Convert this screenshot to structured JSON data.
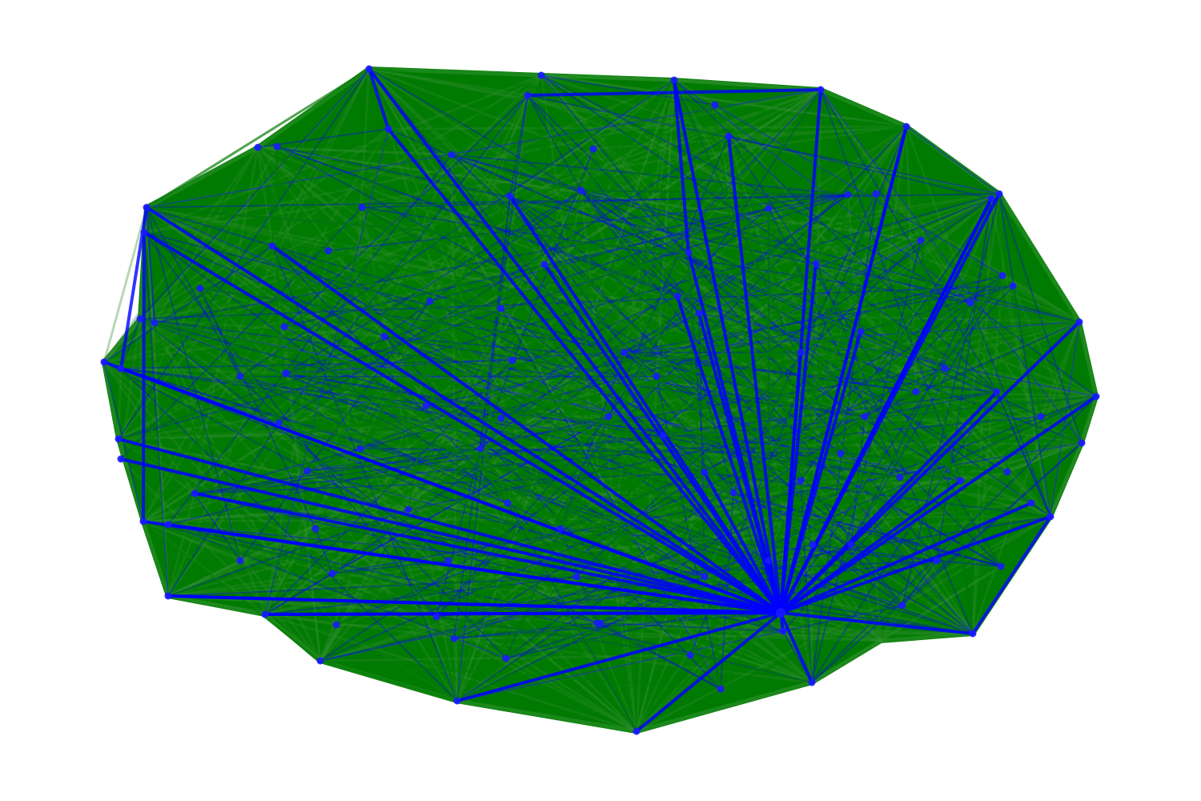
{
  "graph": {
    "node_color": "#1a1aff",
    "dense_edge_color": "#007a00",
    "hub_edge_color": "#0000ff",
    "background": "#ffffff",
    "hub_node_index": 0,
    "node_count": 112
  }
}
